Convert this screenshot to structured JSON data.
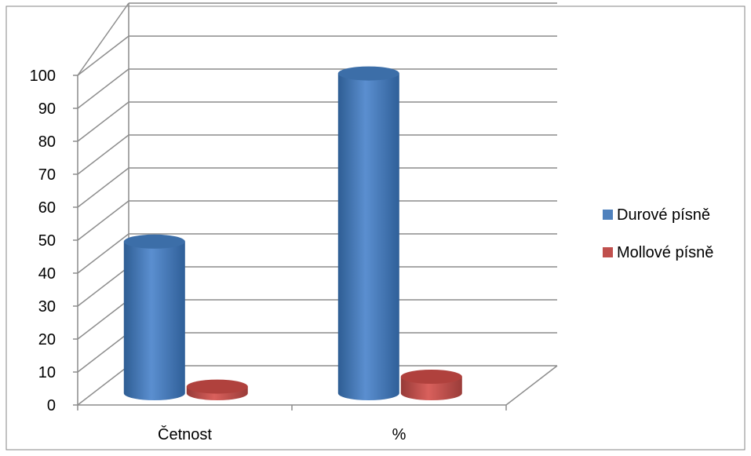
{
  "chart_data": {
    "type": "bar",
    "style": "3d-cylinder",
    "categories": [
      "Četnost",
      "%"
    ],
    "series": [
      {
        "name": "Durové písně",
        "values": [
          46,
          97
        ],
        "color": "#4f81bd"
      },
      {
        "name": "Mollové písně",
        "values": [
          2,
          5
        ],
        "color": "#c0504d"
      }
    ],
    "ylim": [
      0,
      100
    ],
    "yticks": [
      "0",
      "10",
      "20",
      "30",
      "40",
      "50",
      "60",
      "70",
      "80",
      "90",
      "100"
    ],
    "grid": true,
    "legend": "right",
    "title": "",
    "xlabel": "",
    "ylabel": ""
  }
}
